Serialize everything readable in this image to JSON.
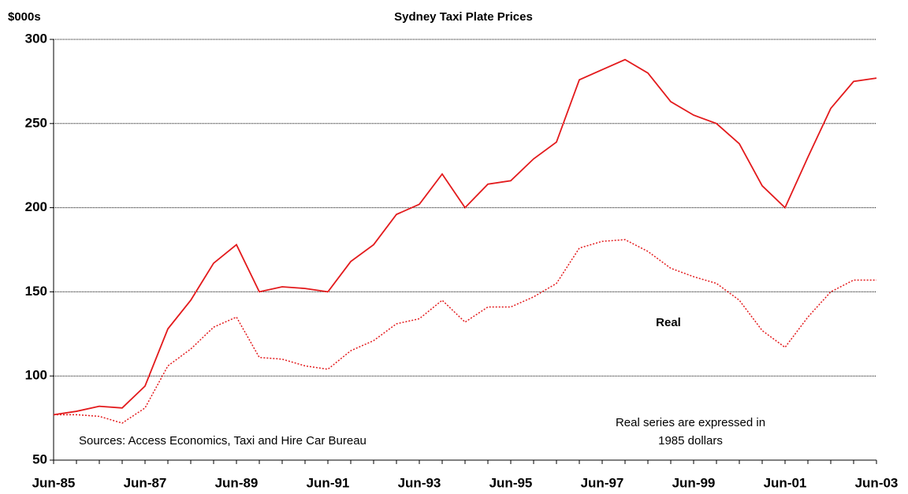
{
  "chart_data": {
    "type": "line",
    "title": "Sydney Taxi Plate Prices",
    "y_label": "$000s",
    "categories": [
      "Jun-85",
      null,
      null,
      null,
      "Jun-87",
      null,
      null,
      null,
      "Jun-89",
      null,
      null,
      null,
      "Jun-91",
      null,
      null,
      null,
      "Jun-93",
      null,
      null,
      null,
      "Jun-95",
      null,
      null,
      null,
      "Jun-97",
      null,
      null,
      null,
      "Jun-99",
      null,
      null,
      null,
      "Jun-01",
      null,
      null,
      null,
      "Jun-03"
    ],
    "series": [
      {
        "color": "#e31a1c",
        "style": "solid",
        "values": [
          77,
          79,
          82,
          81,
          94,
          128,
          145,
          167,
          178,
          150,
          153,
          152,
          150,
          168,
          178,
          196,
          202,
          220,
          200,
          214,
          216,
          229,
          239,
          276,
          282,
          288,
          280,
          263,
          255,
          250,
          238,
          213,
          200,
          230,
          259,
          275,
          277
        ]
      },
      {
        "name": "Real",
        "color": "#e31a1c",
        "style": "dotted",
        "values": [
          77,
          77,
          76,
          72,
          81,
          106,
          116,
          129,
          135,
          111,
          110,
          106,
          104,
          115,
          121,
          131,
          134,
          145,
          132,
          141,
          141,
          147,
          155,
          176,
          180,
          181,
          174,
          164,
          159,
          155,
          145,
          127,
          117,
          135,
          150,
          157,
          157
        ]
      }
    ],
    "ylim": [
      50,
      300
    ],
    "yticks": [
      50,
      100,
      150,
      200,
      250,
      300
    ],
    "grid": true,
    "source": "Sources: Access Economics, Taxi and Hire Car Bureau",
    "note": [
      "Real series are expressed in",
      "1985 dollars"
    ]
  }
}
